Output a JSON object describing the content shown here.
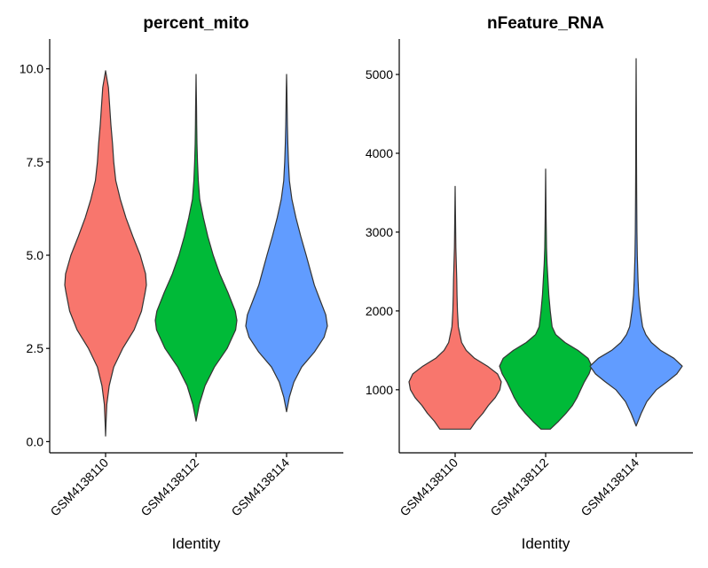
{
  "chart_data": [
    {
      "type": "violin",
      "title": "percent_mito",
      "xlabel": "Identity",
      "ylabel": "",
      "ylim": [
        -0.3,
        10.8
      ],
      "yticks": [
        0.0,
        2.5,
        5.0,
        7.5,
        10.0
      ],
      "ytick_labels": [
        "0.0",
        "2.5",
        "5.0",
        "7.5",
        "10.0"
      ],
      "categories": [
        "GSM4138110",
        "GSM4138112",
        "GSM4138114"
      ],
      "colors": [
        "#F8766D",
        "#00BA38",
        "#619CFF"
      ],
      "series": [
        {
          "name": "GSM4138110",
          "min": 0.15,
          "max": 9.95,
          "profile": [
            [
              0.15,
              0.0
            ],
            [
              0.5,
              0.01
            ],
            [
              1.0,
              0.03
            ],
            [
              1.5,
              0.09
            ],
            [
              2.0,
              0.2
            ],
            [
              2.5,
              0.42
            ],
            [
              3.0,
              0.7
            ],
            [
              3.5,
              0.88
            ],
            [
              4.0,
              0.97
            ],
            [
              4.2,
              1.0
            ],
            [
              4.5,
              0.98
            ],
            [
              5.0,
              0.85
            ],
            [
              5.5,
              0.67
            ],
            [
              6.0,
              0.5
            ],
            [
              6.5,
              0.36
            ],
            [
              7.0,
              0.25
            ],
            [
              7.5,
              0.2
            ],
            [
              8.0,
              0.17
            ],
            [
              8.5,
              0.13
            ],
            [
              9.0,
              0.1
            ],
            [
              9.5,
              0.07
            ],
            [
              9.95,
              0.0
            ]
          ]
        },
        {
          "name": "GSM4138112",
          "min": 0.55,
          "max": 9.85,
          "profile": [
            [
              0.55,
              0.0
            ],
            [
              1.0,
              0.08
            ],
            [
              1.5,
              0.22
            ],
            [
              2.0,
              0.45
            ],
            [
              2.5,
              0.76
            ],
            [
              3.0,
              0.97
            ],
            [
              3.25,
              1.0
            ],
            [
              3.5,
              0.96
            ],
            [
              4.0,
              0.78
            ],
            [
              4.5,
              0.58
            ],
            [
              5.0,
              0.42
            ],
            [
              5.5,
              0.29
            ],
            [
              6.0,
              0.18
            ],
            [
              6.5,
              0.09
            ],
            [
              7.0,
              0.055
            ],
            [
              7.5,
              0.035
            ],
            [
              8.0,
              0.022
            ],
            [
              8.5,
              0.015
            ],
            [
              9.0,
              0.01
            ],
            [
              9.5,
              0.005
            ],
            [
              9.85,
              0.0
            ]
          ]
        },
        {
          "name": "GSM4138114",
          "min": 0.8,
          "max": 9.85,
          "profile": [
            [
              0.8,
              0.0
            ],
            [
              1.2,
              0.07
            ],
            [
              1.6,
              0.18
            ],
            [
              2.0,
              0.37
            ],
            [
              2.4,
              0.68
            ],
            [
              2.8,
              0.92
            ],
            [
              3.1,
              1.0
            ],
            [
              3.4,
              0.96
            ],
            [
              3.8,
              0.82
            ],
            [
              4.2,
              0.68
            ],
            [
              4.6,
              0.58
            ],
            [
              5.0,
              0.48
            ],
            [
              5.5,
              0.35
            ],
            [
              6.0,
              0.23
            ],
            [
              6.5,
              0.13
            ],
            [
              7.0,
              0.07
            ],
            [
              7.5,
              0.045
            ],
            [
              8.0,
              0.03
            ],
            [
              8.5,
              0.02
            ],
            [
              9.0,
              0.012
            ],
            [
              9.5,
              0.006
            ],
            [
              9.85,
              0.0
            ]
          ]
        }
      ]
    },
    {
      "type": "violin",
      "title": "nFeature_RNA",
      "xlabel": "Identity",
      "ylabel": "",
      "ylim": [
        200,
        5450
      ],
      "yticks": [
        1000,
        2000,
        3000,
        4000,
        5000
      ],
      "ytick_labels": [
        "1000",
        "2000",
        "3000",
        "4000",
        "5000"
      ],
      "categories": [
        "GSM4138110",
        "GSM4138112",
        "GSM4138114"
      ],
      "colors": [
        "#F8766D",
        "#00BA38",
        "#619CFF"
      ],
      "series": [
        {
          "name": "GSM4138110",
          "min": 500,
          "max": 3580,
          "profile": [
            [
              500,
              0.33
            ],
            [
              600,
              0.45
            ],
            [
              700,
              0.6
            ],
            [
              800,
              0.72
            ],
            [
              900,
              0.87
            ],
            [
              1000,
              0.97
            ],
            [
              1100,
              1.0
            ],
            [
              1200,
              0.92
            ],
            [
              1300,
              0.7
            ],
            [
              1400,
              0.42
            ],
            [
              1500,
              0.24
            ],
            [
              1600,
              0.14
            ],
            [
              1800,
              0.07
            ],
            [
              2000,
              0.05
            ],
            [
              2200,
              0.04
            ],
            [
              2400,
              0.035
            ],
            [
              2600,
              0.025
            ],
            [
              2800,
              0.015
            ],
            [
              3200,
              0.007
            ],
            [
              3580,
              0.0
            ]
          ]
        },
        {
          "name": "GSM4138112",
          "min": 500,
          "max": 3800,
          "profile": [
            [
              500,
              0.1
            ],
            [
              600,
              0.28
            ],
            [
              700,
              0.44
            ],
            [
              800,
              0.58
            ],
            [
              900,
              0.68
            ],
            [
              1000,
              0.76
            ],
            [
              1100,
              0.84
            ],
            [
              1200,
              0.94
            ],
            [
              1300,
              1.0
            ],
            [
              1400,
              0.92
            ],
            [
              1500,
              0.7
            ],
            [
              1600,
              0.42
            ],
            [
              1700,
              0.22
            ],
            [
              1800,
              0.14
            ],
            [
              2000,
              0.1
            ],
            [
              2200,
              0.07
            ],
            [
              2400,
              0.05
            ],
            [
              2600,
              0.03
            ],
            [
              2800,
              0.02
            ],
            [
              3200,
              0.01
            ],
            [
              3800,
              0.0
            ]
          ]
        },
        {
          "name": "GSM4138114",
          "min": 540,
          "max": 5200,
          "profile": [
            [
              540,
              0.0
            ],
            [
              700,
              0.11
            ],
            [
              850,
              0.23
            ],
            [
              1000,
              0.44
            ],
            [
              1100,
              0.67
            ],
            [
              1200,
              0.88
            ],
            [
              1300,
              1.0
            ],
            [
              1400,
              0.82
            ],
            [
              1500,
              0.53
            ],
            [
              1600,
              0.33
            ],
            [
              1700,
              0.21
            ],
            [
              1800,
              0.14
            ],
            [
              2000,
              0.09
            ],
            [
              2200,
              0.055
            ],
            [
              2400,
              0.04
            ],
            [
              2700,
              0.025
            ],
            [
              3000,
              0.017
            ],
            [
              3500,
              0.012
            ],
            [
              4000,
              0.008
            ],
            [
              4500,
              0.005
            ],
            [
              5200,
              0.0
            ]
          ]
        }
      ]
    }
  ]
}
